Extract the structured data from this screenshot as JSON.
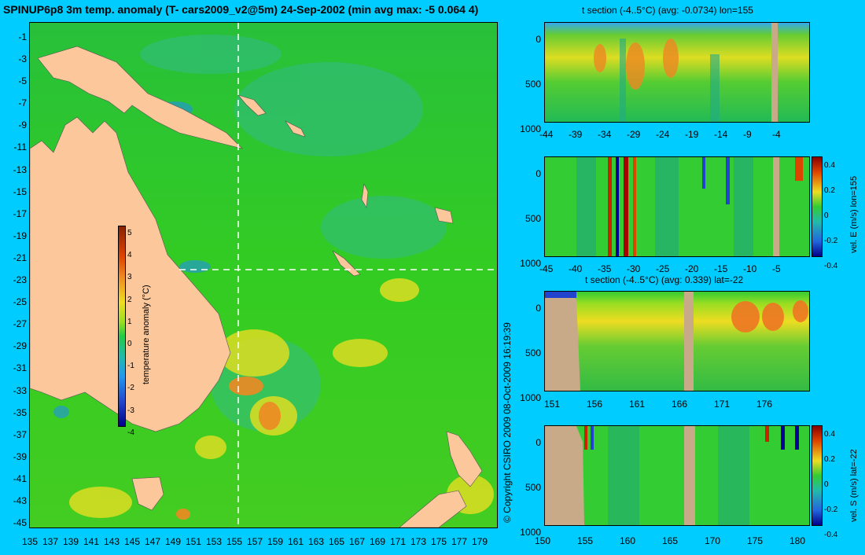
{
  "header": {
    "title": "SPINUP6p8 3m temp. anomaly (T- cars2009_v2@5m) 24-Sep-2002 (min avg max: -5 0.064 4)"
  },
  "copyright": "© Copyright CSIRO 2009   08-Oct-2009 16:19:39",
  "map": {
    "lon_ticks": [
      "135",
      "137",
      "139",
      "141",
      "143",
      "145",
      "147",
      "149",
      "151",
      "153",
      "155",
      "157",
      "159",
      "161",
      "163",
      "165",
      "167",
      "169",
      "171",
      "173",
      "175",
      "177",
      "179"
    ],
    "lat_ticks": [
      "-1",
      "-3",
      "-5",
      "-7",
      "-9",
      "-11",
      "-13",
      "-15",
      "-17",
      "-19",
      "-21",
      "-23",
      "-25",
      "-27",
      "-29",
      "-31",
      "-33",
      "-35",
      "-37",
      "-39",
      "-41",
      "-43",
      "-45"
    ],
    "colorbar_label": "temperature anomaly (°C)",
    "colorbar_ticks": [
      "5",
      "4",
      "3",
      "2",
      "1",
      "0",
      "-1",
      "-2",
      "-3",
      "-4"
    ],
    "section_lon": 155,
    "section_lat": -22,
    "land_color": "#fcc89b",
    "ocean_color": "#22cc22"
  },
  "panels": [
    {
      "title": "t section (-4..5°C) (avg: -0.0734) lon=155",
      "x_ticks": [
        "-44",
        "-39",
        "-34",
        "-29",
        "-24",
        "-19",
        "-14",
        "-9",
        "-4"
      ],
      "y_ticks": [
        "0",
        "500",
        "1000"
      ]
    },
    {
      "title": "",
      "x_ticks": [
        "-45",
        "-40",
        "-35",
        "-30",
        "-25",
        "-20",
        "-15",
        "-10",
        "-5"
      ],
      "y_ticks": [
        "0",
        "500",
        "1000"
      ],
      "colorbar_label": "vel. E (m/s) lon=155",
      "colorbar_ticks": [
        "0.4",
        "0.2",
        "0",
        "-0.2",
        "-0.4"
      ]
    },
    {
      "title": "t section (-4..5°C) (avg: 0.339) lat=-22",
      "x_ticks": [
        "151",
        "156",
        "161",
        "166",
        "171",
        "176"
      ],
      "y_ticks": [
        "0",
        "500",
        "1000"
      ]
    },
    {
      "title": "",
      "x_ticks": [
        "150",
        "155",
        "160",
        "165",
        "170",
        "175",
        "180"
      ],
      "y_ticks": [
        "0",
        "500",
        "1000"
      ],
      "colorbar_label": "vel. S (m/s) lat=-22",
      "colorbar_ticks": [
        "0.4",
        "0.2",
        "0",
        "-0.2",
        "-0.4"
      ]
    }
  ],
  "colors": {
    "background": "#00ccff",
    "section_land": "#c8aa88"
  }
}
